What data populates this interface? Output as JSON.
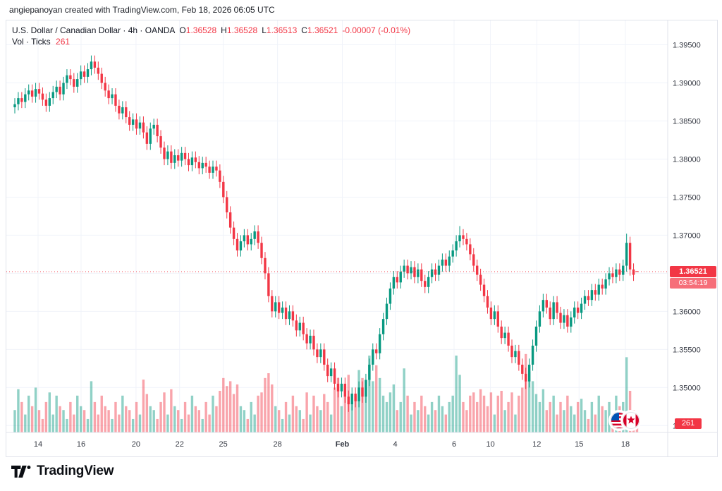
{
  "attribution": "angiepanoyan created with TradingView.com, Feb 18, 2026 06:05 UTC",
  "legend": {
    "title": "U.S. Dollar / Canadian Dollar · 4h · OANDA",
    "ohlc": {
      "o_label": "O",
      "o": "1.36528",
      "h_label": "H",
      "h": "1.36528",
      "l_label": "L",
      "l": "1.36513",
      "c_label": "C",
      "c": "1.36521",
      "change": "-0.00007 (-0.01%)"
    },
    "volume_row": {
      "label": "Vol · Ticks",
      "value": "261"
    }
  },
  "last_price": {
    "label": "1.36521",
    "value": 1.36521,
    "countdown": "03:54:19"
  },
  "volume_badge": "261",
  "branding": {
    "logo_text": "TradingView"
  },
  "icons": {
    "pair_base": "us-flag-icon",
    "pair_quote": "canada-flag-icon",
    "logo": "tradingview-logo-icon"
  },
  "chart_data": {
    "type": "candlestick",
    "title": "U.S. Dollar / Canadian Dollar",
    "symbol": "USD/CAD",
    "interval": "4h",
    "exchange": "OANDA",
    "grid": true,
    "ylim": [
      1.3441,
      1.3982
    ],
    "volume_max": 2600,
    "colors": {
      "up": "#089981",
      "down": "#f23645",
      "grid": "#f0f3fa",
      "axis_text": "#343842",
      "last_price_line": "#f23645"
    },
    "y_ticks": [
      {
        "text": "1.39500",
        "value": 1.395
      },
      {
        "text": "1.39000",
        "value": 1.39
      },
      {
        "text": "1.38500",
        "value": 1.385
      },
      {
        "text": "1.38000",
        "value": 1.38
      },
      {
        "text": "1.37500",
        "value": 1.375
      },
      {
        "text": "1.37000",
        "value": 1.37
      },
      {
        "text": "1.36500",
        "value": 1.365
      },
      {
        "text": "1.36000",
        "value": 1.36
      },
      {
        "text": "1.35500",
        "value": 1.355
      },
      {
        "text": "1.35000",
        "value": 1.35
      },
      {
        "text": "1.34500",
        "value": 1.345
      }
    ],
    "x_ticks": [
      {
        "text": "14",
        "f": 0.048
      },
      {
        "text": "16",
        "f": 0.113
      },
      {
        "text": "20",
        "f": 0.196
      },
      {
        "text": "22",
        "f": 0.262
      },
      {
        "text": "25",
        "f": 0.328
      },
      {
        "text": "28",
        "f": 0.41
      },
      {
        "text": "Feb",
        "f": 0.508,
        "bold": true
      },
      {
        "text": "4",
        "f": 0.588
      },
      {
        "text": "6",
        "f": 0.677
      },
      {
        "text": "10",
        "f": 0.732
      },
      {
        "text": "12",
        "f": 0.802
      },
      {
        "text": "15",
        "f": 0.866
      },
      {
        "text": "18",
        "f": 0.936
      }
    ],
    "series_format": [
      "open",
      "high",
      "low",
      "close",
      "volume"
    ],
    "candles": [
      [
        1.3868,
        1.388,
        1.386,
        1.3872,
        700
      ],
      [
        1.3872,
        1.3888,
        1.3864,
        1.388,
        1350
      ],
      [
        1.388,
        1.3888,
        1.3867,
        1.3875,
        950
      ],
      [
        1.3875,
        1.3893,
        1.3867,
        1.3885,
        560
      ],
      [
        1.3885,
        1.3898,
        1.3877,
        1.389,
        1150
      ],
      [
        1.389,
        1.3898,
        1.3874,
        1.3882,
        820
      ],
      [
        1.3882,
        1.39,
        1.3874,
        1.3892,
        1400
      ],
      [
        1.3892,
        1.39,
        1.3878,
        1.3886,
        700
      ],
      [
        1.3886,
        1.3894,
        1.387,
        1.3878,
        420
      ],
      [
        1.3878,
        1.3886,
        1.3862,
        1.387,
        950
      ],
      [
        1.387,
        1.3888,
        1.3862,
        1.388,
        1250
      ],
      [
        1.388,
        1.3896,
        1.3872,
        1.3888,
        560
      ],
      [
        1.3888,
        1.3903,
        1.388,
        1.3895,
        1150
      ],
      [
        1.3895,
        1.3903,
        1.3877,
        1.3885,
        820
      ],
      [
        1.3885,
        1.3908,
        1.3877,
        1.39,
        700
      ],
      [
        1.39,
        1.3918,
        1.3892,
        1.391,
        420
      ],
      [
        1.391,
        1.3918,
        1.3897,
        1.3905,
        950
      ],
      [
        1.3905,
        1.3913,
        1.3887,
        1.3895,
        560
      ],
      [
        1.3895,
        1.3913,
        1.3887,
        1.3905,
        1150
      ],
      [
        1.3905,
        1.3923,
        1.3897,
        1.3915,
        820
      ],
      [
        1.3915,
        1.3923,
        1.39,
        1.3908,
        700
      ],
      [
        1.3908,
        1.3926,
        1.39,
        1.3918,
        420
      ],
      [
        1.3918,
        1.3936,
        1.391,
        1.3928,
        1600
      ],
      [
        1.3928,
        1.3936,
        1.3912,
        1.392,
        950
      ],
      [
        1.392,
        1.3928,
        1.3904,
        1.3912,
        560
      ],
      [
        1.3912,
        1.392,
        1.3892,
        1.39,
        1150
      ],
      [
        1.39,
        1.3908,
        1.3882,
        1.389,
        820
      ],
      [
        1.389,
        1.3898,
        1.3872,
        1.388,
        700
      ],
      [
        1.388,
        1.3893,
        1.3872,
        1.3885,
        420
      ],
      [
        1.3885,
        1.3893,
        1.3862,
        1.387,
        950
      ],
      [
        1.387,
        1.3878,
        1.3852,
        1.386,
        560
      ],
      [
        1.386,
        1.3876,
        1.3852,
        1.3868,
        1150
      ],
      [
        1.3868,
        1.3876,
        1.3847,
        1.3855,
        820
      ],
      [
        1.3855,
        1.3863,
        1.3837,
        1.3845,
        700
      ],
      [
        1.3845,
        1.386,
        1.3837,
        1.3852,
        420
      ],
      [
        1.3852,
        1.386,
        1.3832,
        1.384,
        950
      ],
      [
        1.384,
        1.3856,
        1.3832,
        1.3848,
        560
      ],
      [
        1.3848,
        1.3856,
        1.3827,
        1.3835,
        1650
      ],
      [
        1.3835,
        1.3843,
        1.3812,
        1.382,
        1200
      ],
      [
        1.382,
        1.3848,
        1.3812,
        1.384,
        820
      ],
      [
        1.384,
        1.3853,
        1.3832,
        1.3845,
        700
      ],
      [
        1.3845,
        1.3853,
        1.3822,
        1.383,
        420
      ],
      [
        1.383,
        1.3838,
        1.3807,
        1.3815,
        950
      ],
      [
        1.3815,
        1.3823,
        1.3792,
        1.38,
        1250
      ],
      [
        1.38,
        1.3818,
        1.3792,
        1.381,
        560
      ],
      [
        1.381,
        1.3818,
        1.3787,
        1.3795,
        1350
      ],
      [
        1.3795,
        1.3813,
        1.3787,
        1.3805,
        820
      ],
      [
        1.3805,
        1.3813,
        1.379,
        1.3798,
        700
      ],
      [
        1.3798,
        1.3816,
        1.379,
        1.3808,
        420
      ],
      [
        1.3808,
        1.3816,
        1.3792,
        1.38,
        950
      ],
      [
        1.38,
        1.3808,
        1.3784,
        1.3792,
        560
      ],
      [
        1.3792,
        1.381,
        1.3784,
        1.3802,
        1150
      ],
      [
        1.3802,
        1.381,
        1.3788,
        1.3796,
        820
      ],
      [
        1.3796,
        1.3804,
        1.378,
        1.3788,
        700
      ],
      [
        1.3788,
        1.3803,
        1.378,
        1.3795,
        420
      ],
      [
        1.3795,
        1.3803,
        1.3782,
        1.379,
        950
      ],
      [
        1.379,
        1.3798,
        1.3774,
        1.3782,
        560
      ],
      [
        1.3782,
        1.3798,
        1.3774,
        1.379,
        1150
      ],
      [
        1.379,
        1.3798,
        1.3777,
        1.3785,
        820
      ],
      [
        1.3785,
        1.3793,
        1.3762,
        1.377,
        1300
      ],
      [
        1.377,
        1.3778,
        1.3742,
        1.375,
        1700
      ],
      [
        1.375,
        1.3758,
        1.3722,
        1.373,
        1450
      ],
      [
        1.373,
        1.3738,
        1.3702,
        1.371,
        1600
      ],
      [
        1.371,
        1.3718,
        1.3687,
        1.3695,
        1200
      ],
      [
        1.3695,
        1.3703,
        1.3672,
        1.368,
        1500
      ],
      [
        1.368,
        1.37,
        1.3672,
        1.3692,
        820
      ],
      [
        1.3692,
        1.3708,
        1.3684,
        1.37,
        700
      ],
      [
        1.37,
        1.3708,
        1.368,
        1.3688,
        420
      ],
      [
        1.3688,
        1.3703,
        1.368,
        1.3695,
        950
      ],
      [
        1.3695,
        1.3713,
        1.3687,
        1.3705,
        560
      ],
      [
        1.3705,
        1.3713,
        1.3682,
        1.369,
        1150
      ],
      [
        1.369,
        1.3698,
        1.3662,
        1.367,
        1250
      ],
      [
        1.367,
        1.3678,
        1.3642,
        1.365,
        1700
      ],
      [
        1.365,
        1.3658,
        1.3612,
        1.362,
        1850
      ],
      [
        1.362,
        1.3628,
        1.3592,
        1.36,
        1500
      ],
      [
        1.36,
        1.362,
        1.3592,
        1.3612,
        820
      ],
      [
        1.3612,
        1.362,
        1.359,
        1.3598,
        700
      ],
      [
        1.3598,
        1.3613,
        1.359,
        1.3605,
        420
      ],
      [
        1.3605,
        1.3613,
        1.3582,
        1.359,
        950
      ],
      [
        1.359,
        1.3608,
        1.3582,
        1.36,
        560
      ],
      [
        1.36,
        1.3608,
        1.358,
        1.3588,
        1150
      ],
      [
        1.3588,
        1.3596,
        1.3567,
        1.3575,
        820
      ],
      [
        1.3575,
        1.3593,
        1.3567,
        1.3585,
        700
      ],
      [
        1.3585,
        1.3593,
        1.3562,
        1.357,
        420
      ],
      [
        1.357,
        1.3578,
        1.355,
        1.3558,
        1250
      ],
      [
        1.3558,
        1.3576,
        1.355,
        1.3568,
        560
      ],
      [
        1.3568,
        1.3576,
        1.3542,
        1.355,
        1150
      ],
      [
        1.355,
        1.3558,
        1.3532,
        1.354,
        820
      ],
      [
        1.354,
        1.3558,
        1.3532,
        1.355,
        700
      ],
      [
        1.355,
        1.3558,
        1.3522,
        1.353,
        1200
      ],
      [
        1.353,
        1.3538,
        1.3507,
        1.3515,
        950
      ],
      [
        1.3515,
        1.3533,
        1.3507,
        1.3525,
        560
      ],
      [
        1.3525,
        1.3533,
        1.3497,
        1.3505,
        1400
      ],
      [
        1.3505,
        1.3513,
        1.3487,
        1.3495,
        1700
      ],
      [
        1.3495,
        1.3513,
        1.3487,
        1.3505,
        820
      ],
      [
        1.3505,
        1.3513,
        1.348,
        1.3488,
        1500
      ],
      [
        1.3488,
        1.3496,
        1.3468,
        1.3478,
        1800
      ],
      [
        1.3478,
        1.35,
        1.347,
        1.3492,
        950
      ],
      [
        1.3492,
        1.35,
        1.3474,
        1.3482,
        1150
      ],
      [
        1.3482,
        1.3508,
        1.3474,
        1.35,
        1950
      ],
      [
        1.35,
        1.3508,
        1.348,
        1.3488,
        1700
      ],
      [
        1.3488,
        1.3518,
        1.348,
        1.351,
        1400
      ],
      [
        1.351,
        1.3538,
        1.3502,
        1.353,
        2400
      ],
      [
        1.353,
        1.3558,
        1.3522,
        1.355,
        1600
      ],
      [
        1.355,
        1.3558,
        1.3537,
        1.3545,
        2100
      ],
      [
        1.3545,
        1.3578,
        1.3537,
        1.357,
        1700
      ],
      [
        1.357,
        1.3598,
        1.3562,
        1.359,
        1150
      ],
      [
        1.359,
        1.3618,
        1.3582,
        1.361,
        950
      ],
      [
        1.361,
        1.3638,
        1.3602,
        1.363,
        1250
      ],
      [
        1.363,
        1.3653,
        1.3622,
        1.3645,
        1500
      ],
      [
        1.3645,
        1.3653,
        1.363,
        1.3638,
        700
      ],
      [
        1.3638,
        1.366,
        1.363,
        1.3652,
        950
      ],
      [
        1.3652,
        1.3668,
        1.3644,
        1.366,
        2000
      ],
      [
        1.366,
        1.3668,
        1.3642,
        1.365,
        1150
      ],
      [
        1.365,
        1.3666,
        1.3642,
        1.3658,
        560
      ],
      [
        1.3658,
        1.3666,
        1.3637,
        1.3645,
        950
      ],
      [
        1.3645,
        1.3663,
        1.3637,
        1.3655,
        700
      ],
      [
        1.3655,
        1.3663,
        1.3632,
        1.364,
        1150
      ],
      [
        1.364,
        1.3648,
        1.3624,
        1.3632,
        820
      ],
      [
        1.3632,
        1.3653,
        1.3624,
        1.3645,
        560
      ],
      [
        1.3645,
        1.3663,
        1.3637,
        1.3655,
        950
      ],
      [
        1.3655,
        1.3663,
        1.364,
        1.3648,
        700
      ],
      [
        1.3648,
        1.3668,
        1.364,
        1.366,
        1150
      ],
      [
        1.366,
        1.3676,
        1.3652,
        1.3668,
        820
      ],
      [
        1.3668,
        1.3676,
        1.3652,
        1.366,
        560
      ],
      [
        1.366,
        1.368,
        1.3652,
        1.3672,
        950
      ],
      [
        1.3672,
        1.3688,
        1.3664,
        1.368,
        1150
      ],
      [
        1.368,
        1.37,
        1.3672,
        1.3692,
        2400
      ],
      [
        1.3692,
        1.3712,
        1.3684,
        1.37,
        1800
      ],
      [
        1.37,
        1.3708,
        1.3687,
        1.3695,
        950
      ],
      [
        1.3695,
        1.3703,
        1.368,
        1.3688,
        700
      ],
      [
        1.3688,
        1.3696,
        1.3667,
        1.3675,
        1150
      ],
      [
        1.3675,
        1.3683,
        1.3652,
        1.366,
        1250
      ],
      [
        1.366,
        1.3668,
        1.364,
        1.3648,
        950
      ],
      [
        1.3648,
        1.3656,
        1.3627,
        1.3635,
        1350
      ],
      [
        1.3635,
        1.3643,
        1.3612,
        1.362,
        1150
      ],
      [
        1.362,
        1.3628,
        1.3597,
        1.3605,
        820
      ],
      [
        1.3605,
        1.3613,
        1.3582,
        1.359,
        1250
      ],
      [
        1.359,
        1.3608,
        1.3582,
        1.36,
        560
      ],
      [
        1.36,
        1.3608,
        1.3572,
        1.358,
        1150
      ],
      [
        1.358,
        1.3588,
        1.3557,
        1.3565,
        1300
      ],
      [
        1.3565,
        1.358,
        1.3557,
        1.3572,
        700
      ],
      [
        1.3572,
        1.358,
        1.3547,
        1.3555,
        950
      ],
      [
        1.3555,
        1.3563,
        1.3532,
        1.354,
        1250
      ],
      [
        1.354,
        1.3556,
        1.3532,
        1.3548,
        560
      ],
      [
        1.3548,
        1.3556,
        1.3522,
        1.353,
        1150
      ],
      [
        1.353,
        1.3538,
        1.351,
        1.3518,
        1400
      ],
      [
        1.3518,
        1.3526,
        1.3498,
        1.3508,
        2450
      ],
      [
        1.3508,
        1.3538,
        1.35,
        1.353,
        1900
      ],
      [
        1.353,
        1.3563,
        1.3522,
        1.3555,
        1600
      ],
      [
        1.3555,
        1.3588,
        1.3547,
        1.358,
        1200
      ],
      [
        1.358,
        1.3608,
        1.3572,
        1.36,
        950
      ],
      [
        1.36,
        1.3623,
        1.3592,
        1.3615,
        1350
      ],
      [
        1.3615,
        1.3623,
        1.3597,
        1.3605,
        700
      ],
      [
        1.3605,
        1.3613,
        1.3582,
        1.359,
        950
      ],
      [
        1.359,
        1.362,
        1.3582,
        1.3612,
        1150
      ],
      [
        1.3612,
        1.362,
        1.359,
        1.3598,
        560
      ],
      [
        1.3598,
        1.3606,
        1.3577,
        1.3585,
        950
      ],
      [
        1.3585,
        1.3603,
        1.3577,
        1.3595,
        700
      ],
      [
        1.3595,
        1.3603,
        1.3572,
        1.358,
        1150
      ],
      [
        1.358,
        1.36,
        1.3572,
        1.3592,
        820
      ],
      [
        1.3592,
        1.3613,
        1.3584,
        1.3605,
        560
      ],
      [
        1.3605,
        1.3613,
        1.359,
        1.3598,
        950
      ],
      [
        1.3598,
        1.3618,
        1.359,
        1.361,
        1050
      ],
      [
        1.361,
        1.3628,
        1.3602,
        1.362,
        700
      ],
      [
        1.362,
        1.3628,
        1.3607,
        1.3615,
        420
      ],
      [
        1.3615,
        1.3636,
        1.3607,
        1.3628,
        950
      ],
      [
        1.3628,
        1.3636,
        1.3614,
        1.3622,
        560
      ],
      [
        1.3622,
        1.3643,
        1.3614,
        1.3635,
        1150
      ],
      [
        1.3635,
        1.3643,
        1.3622,
        1.363,
        820
      ],
      [
        1.363,
        1.365,
        1.3622,
        1.3642,
        700
      ],
      [
        1.3642,
        1.3658,
        1.3634,
        1.365,
        950
      ],
      [
        1.365,
        1.3658,
        1.3637,
        1.3645,
        560
      ],
      [
        1.3645,
        1.3663,
        1.3637,
        1.3655,
        1150
      ],
      [
        1.3655,
        1.3663,
        1.364,
        1.3648,
        820
      ],
      [
        1.3648,
        1.3668,
        1.364,
        1.366,
        950
      ],
      [
        1.366,
        1.3702,
        1.3652,
        1.369,
        2350
      ],
      [
        1.369,
        1.3698,
        1.3647,
        1.3655,
        1300
      ],
      [
        1.3655,
        1.3663,
        1.364,
        1.3648,
        700
      ],
      [
        1.36528,
        1.36528,
        1.36513,
        1.36521,
        261
      ]
    ]
  }
}
